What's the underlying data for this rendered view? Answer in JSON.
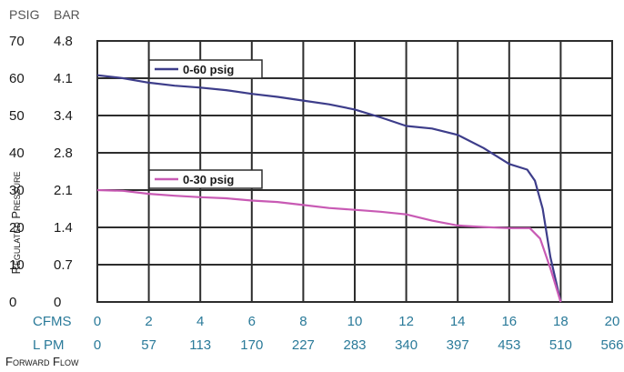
{
  "chart_data": {
    "type": "line",
    "left_axis_headers": [
      "PSIG",
      "BAR"
    ],
    "psig_ticks": [
      "70",
      "60",
      "50",
      "40",
      "30",
      "20",
      "10",
      "0"
    ],
    "bar_ticks": [
      "4.8",
      "4.1",
      "3.4",
      "2.8",
      "2.1",
      "1.4",
      "0.7",
      "0"
    ],
    "cfms_label": "CFMS",
    "cfms_ticks": [
      "0",
      "2",
      "4",
      "6",
      "8",
      "10",
      "12",
      "14",
      "16",
      "18",
      "20"
    ],
    "lpm_label": "L PM",
    "lpm_ticks": [
      "0",
      "57",
      "113",
      "170",
      "227",
      "283",
      "340",
      "397",
      "453",
      "510",
      "566"
    ],
    "ylabel": "Regulated Pressure",
    "xlabel": "Forward Flow",
    "xlim": [
      0,
      20
    ],
    "ylim": [
      0,
      70
    ],
    "grid": true,
    "series": [
      {
        "name": "0-60 psig",
        "color": "#3d3d8a",
        "points": [
          [
            0,
            60.8
          ],
          [
            1,
            60
          ],
          [
            2,
            58.8
          ],
          [
            3,
            58
          ],
          [
            4,
            57.5
          ],
          [
            5,
            56.8
          ],
          [
            6,
            55.8
          ],
          [
            7,
            55
          ],
          [
            8,
            54
          ],
          [
            9,
            53
          ],
          [
            10,
            51.6
          ],
          [
            11,
            49.5
          ],
          [
            12,
            47.2
          ],
          [
            13,
            46.5
          ],
          [
            14,
            44.8
          ],
          [
            15,
            41.3
          ],
          [
            16,
            37
          ],
          [
            16.7,
            35.5
          ],
          [
            17,
            32.5
          ],
          [
            17.3,
            25
          ],
          [
            17.6,
            12
          ],
          [
            18,
            0
          ]
        ]
      },
      {
        "name": "0-30 psig",
        "color": "#c85ab4",
        "points": [
          [
            0,
            30
          ],
          [
            1,
            29.8
          ],
          [
            2,
            29
          ],
          [
            3,
            28.5
          ],
          [
            4,
            28.1
          ],
          [
            5,
            27.8
          ],
          [
            6,
            27.2
          ],
          [
            7,
            26.8
          ],
          [
            8,
            26
          ],
          [
            9,
            25.2
          ],
          [
            10,
            24.7
          ],
          [
            11,
            24.2
          ],
          [
            12,
            23.5
          ],
          [
            13,
            21.8
          ],
          [
            14,
            20.5
          ],
          [
            15,
            20.1
          ],
          [
            16,
            19.8
          ],
          [
            16.8,
            19.8
          ],
          [
            17.2,
            17
          ],
          [
            17.6,
            9
          ],
          [
            18,
            0
          ]
        ]
      }
    ]
  }
}
